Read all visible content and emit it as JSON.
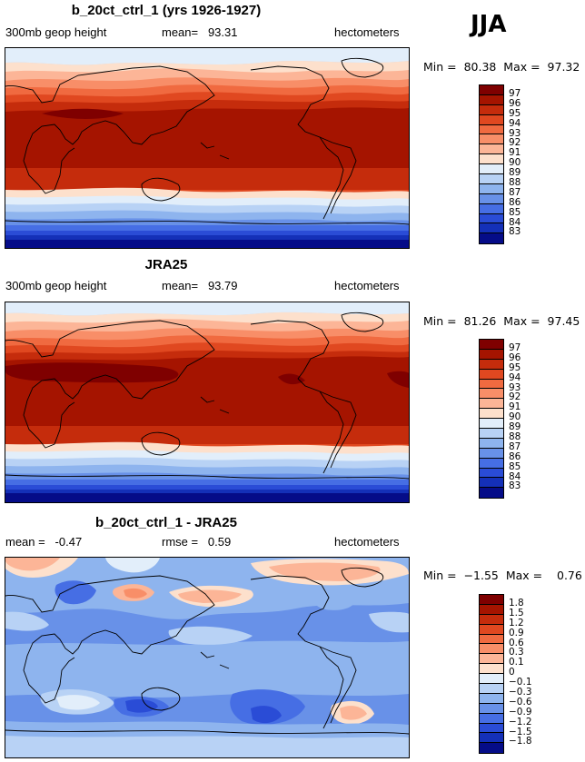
{
  "season": "JJA",
  "panels": [
    {
      "title": "b_20ct_ctrl_1 (yrs 1926-1927)",
      "left": "300mb geop height",
      "center": "mean=   93.31",
      "right": "hectometers",
      "minmax": "Min =  80.38  Max =  97.32",
      "scale": "height",
      "colorbar_labels": [
        "97",
        "96",
        "95",
        "94",
        "93",
        "92",
        "91",
        "90",
        "89",
        "88",
        "87",
        "86",
        "85",
        "84",
        "83"
      ]
    },
    {
      "title": "JRA25",
      "left": "300mb geop height",
      "center": "mean=   93.79",
      "right": "hectometers",
      "minmax": "Min =  81.26  Max =  97.45",
      "scale": "height",
      "colorbar_labels": [
        "97",
        "96",
        "95",
        "94",
        "93",
        "92",
        "91",
        "90",
        "89",
        "88",
        "87",
        "86",
        "85",
        "84",
        "83"
      ]
    },
    {
      "title": "b_20ct_ctrl_1 - JRA25",
      "left": "mean =   -0.47",
      "center": "rmse =   0.59",
      "right": "hectometers",
      "minmax": "Min =  −1.55  Max =    0.76",
      "scale": "diff",
      "colorbar_labels": [
        "1.8",
        "1.5",
        "1.2",
        "0.9",
        "0.6",
        "0.3",
        "0.1",
        "0",
        "−0.1",
        "−0.3",
        "−0.6",
        "−0.9",
        "−1.2",
        "−1.5",
        "−1.8"
      ]
    }
  ],
  "colors": {
    "scale16": [
      "#7f0000",
      "#a51400",
      "#c52c0c",
      "#e04820",
      "#f06a40",
      "#f88e68",
      "#fcb597",
      "#fde0cc",
      "#e2eefa",
      "#b8d2f5",
      "#8eb4ee",
      "#6891e8",
      "#466ee4",
      "#2a4cd6",
      "#1430b8",
      "#050c88"
    ]
  }
}
